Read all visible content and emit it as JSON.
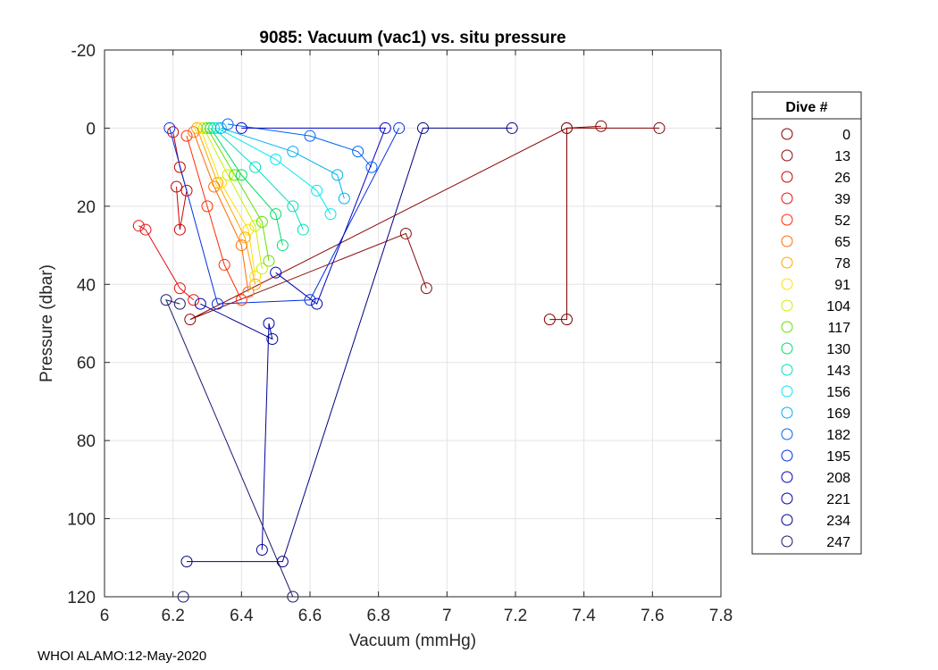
{
  "chart_data": {
    "type": "scatter",
    "title": "9085: Vacuum (vac1) vs. situ pressure",
    "xlabel": "Vacuum (mmHg)",
    "ylabel": "Pressure (dbar)",
    "xlim": [
      6,
      7.8
    ],
    "ylim": [
      -20,
      120
    ],
    "y_reversed": true,
    "x_ticks": [
      "6",
      "6.2",
      "6.4",
      "6.6",
      "6.8",
      "7",
      "7.2",
      "7.4",
      "7.6",
      "7.8"
    ],
    "y_ticks": [
      "-20",
      "0",
      "20",
      "40",
      "60",
      "80",
      "100",
      "120"
    ],
    "grid": true,
    "legend_title": "Dive #",
    "legend_position": "right",
    "series": [
      {
        "name": "0",
        "color": "#800000",
        "x": [
          7.62,
          7.35,
          7.35,
          7.3
        ],
        "y": [
          0,
          0,
          49,
          49
        ]
      },
      {
        "name": "13",
        "color": "#8b0a0a",
        "x": [
          7.45,
          7.35,
          6.25,
          6.88,
          6.94
        ],
        "y": [
          -0.5,
          0,
          49,
          27,
          41
        ]
      },
      {
        "name": "26",
        "color": "#c80000",
        "x": [
          6.2,
          6.22,
          6.24,
          6.22,
          6.21
        ],
        "y": [
          1,
          10,
          16,
          26,
          15
        ]
      },
      {
        "name": "39",
        "color": "#e81010",
        "x": [
          6.1,
          6.12,
          6.22,
          6.26
        ],
        "y": [
          25,
          26,
          41,
          44
        ]
      },
      {
        "name": "52",
        "color": "#ff2a00",
        "x": [
          6.24,
          6.3,
          6.35,
          6.4
        ],
        "y": [
          2,
          20,
          35,
          44
        ]
      },
      {
        "name": "65",
        "color": "#ff6a00",
        "x": [
          6.26,
          6.32,
          6.4,
          6.42
        ],
        "y": [
          1,
          15,
          30,
          42
        ]
      },
      {
        "name": "78",
        "color": "#ffa500",
        "x": [
          6.27,
          6.33,
          6.41,
          6.44
        ],
        "y": [
          0,
          14,
          28,
          40
        ]
      },
      {
        "name": "91",
        "color": "#ffe000",
        "x": [
          6.28,
          6.34,
          6.42,
          6.44
        ],
        "y": [
          0,
          14,
          26,
          38
        ]
      },
      {
        "name": "104",
        "color": "#c8f000",
        "x": [
          6.29,
          6.36,
          6.44,
          6.46
        ],
        "y": [
          0,
          12,
          25,
          36
        ]
      },
      {
        "name": "117",
        "color": "#60e000",
        "x": [
          6.3,
          6.38,
          6.46,
          6.48
        ],
        "y": [
          0,
          12,
          24,
          34
        ]
      },
      {
        "name": "130",
        "color": "#00dc6a",
        "x": [
          6.31,
          6.4,
          6.5,
          6.52
        ],
        "y": [
          0,
          12,
          22,
          30
        ]
      },
      {
        "name": "143",
        "color": "#00e0c0",
        "x": [
          6.32,
          6.44,
          6.55,
          6.58
        ],
        "y": [
          0,
          10,
          20,
          26
        ]
      },
      {
        "name": "156",
        "color": "#00e8f0",
        "x": [
          6.33,
          6.5,
          6.62,
          6.66
        ],
        "y": [
          0,
          8,
          16,
          22
        ]
      },
      {
        "name": "169",
        "color": "#00b0f0",
        "x": [
          6.34,
          6.55,
          6.68,
          6.7
        ],
        "y": [
          0,
          6,
          12,
          18
        ]
      },
      {
        "name": "182",
        "color": "#0064f0",
        "x": [
          6.36,
          6.6,
          6.74,
          6.78
        ],
        "y": [
          -1,
          2,
          6,
          10
        ]
      },
      {
        "name": "195",
        "color": "#0030e0",
        "x": [
          6.19,
          6.33,
          6.6,
          6.86
        ],
        "y": [
          0,
          45,
          44,
          0
        ]
      },
      {
        "name": "208",
        "color": "#0000c0",
        "x": [
          6.4,
          6.82,
          6.62,
          6.5
        ],
        "y": [
          0,
          0,
          45,
          37
        ]
      },
      {
        "name": "221",
        "color": "#0000a0",
        "x": [
          6.28,
          6.49,
          6.48,
          6.46
        ],
        "y": [
          45,
          54,
          50,
          108
        ]
      },
      {
        "name": "234",
        "color": "#000080",
        "x": [
          6.24,
          6.52,
          6.93,
          7.19
        ],
        "y": [
          111,
          111,
          0,
          0
        ]
      },
      {
        "name": "247",
        "color": "#18186e",
        "x": [
          6.23,
          6.55,
          6.18,
          6.22
        ],
        "y": [
          120,
          120,
          44,
          45
        ]
      }
    ]
  },
  "footer": "WHOI ALAMO:12-May-2020"
}
